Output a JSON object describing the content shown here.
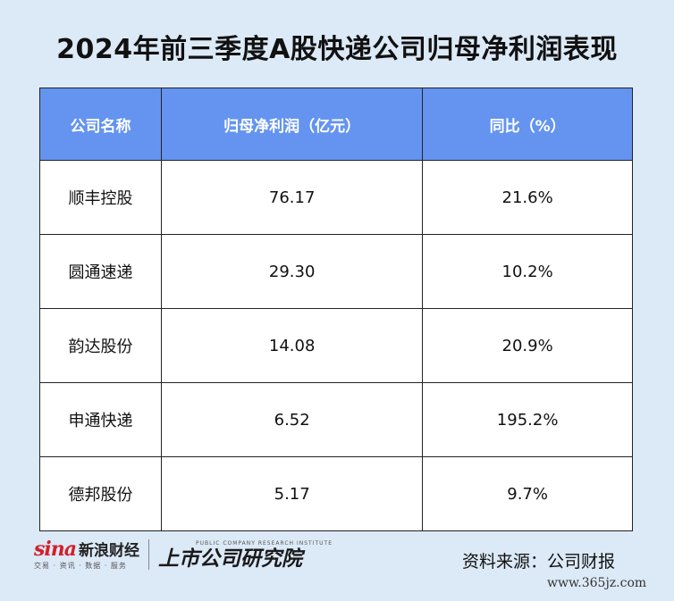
{
  "title": "2024年前三季度A股快递公司归母净利润表现",
  "chart_data": {
    "type": "table",
    "title": "2024年前三季度A股快递公司归母净利润表现",
    "columns": [
      "公司名称",
      "归母净利润（亿元）",
      "同比（%）"
    ],
    "rows": [
      {
        "company": "顺丰控股",
        "profit": "76.17",
        "yoy": "21.6%"
      },
      {
        "company": "圆通速递",
        "profit": "29.30",
        "yoy": "10.2%"
      },
      {
        "company": "韵达股份",
        "profit": "14.08",
        "yoy": "20.9%"
      },
      {
        "company": "申通快递",
        "profit": "6.52",
        "yoy": "195.2%"
      },
      {
        "company": "德邦股份",
        "profit": "5.17",
        "yoy": "9.7%"
      }
    ]
  },
  "footer": {
    "sina_mark": "sina",
    "sina_name": "新浪财经",
    "sina_sub": "交易 · 资讯 · 数据 · 服务",
    "sgs_en": "PUBLIC COMPANY RESEARCH INSTITUTE",
    "sgs_cn": "上市公司研究院",
    "source": "资料来源：公司财报",
    "watermark": "www.365jz.com"
  },
  "colors": {
    "background": "#dce9f7",
    "header": "#6494f0",
    "sina_red": "#d2202a"
  }
}
